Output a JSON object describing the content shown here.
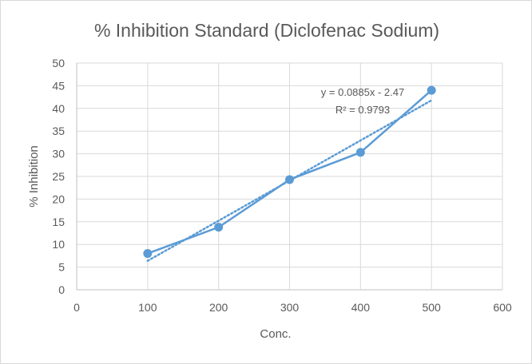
{
  "chart_data": {
    "type": "scatter",
    "title": "% Inhibition Standard (Diclofenac Sodium)",
    "xlabel": "Conc.",
    "ylabel": "% Inhibition",
    "xlim": [
      0,
      600
    ],
    "ylim": [
      0,
      50
    ],
    "xticks": [
      0,
      100,
      200,
      300,
      400,
      500,
      600
    ],
    "yticks": [
      0,
      5,
      10,
      15,
      20,
      25,
      30,
      35,
      40,
      45,
      50
    ],
    "grid": true,
    "legend": "none",
    "series": [
      {
        "x": [
          100,
          200,
          300,
          400,
          500
        ],
        "y": [
          8.0,
          13.8,
          24.3,
          30.3,
          44.0
        ],
        "color": "#5b9bd5",
        "lines": "straight-with-markers"
      }
    ],
    "trendline": {
      "type": "linear",
      "slope": 0.0885,
      "intercept": -2.47,
      "x_range": [
        100,
        500
      ],
      "style": "dotted",
      "color": "#5b9bd5",
      "equation_label": "y = 0.0885x - 2.47",
      "r2_label": "R² = 0.9793"
    }
  }
}
